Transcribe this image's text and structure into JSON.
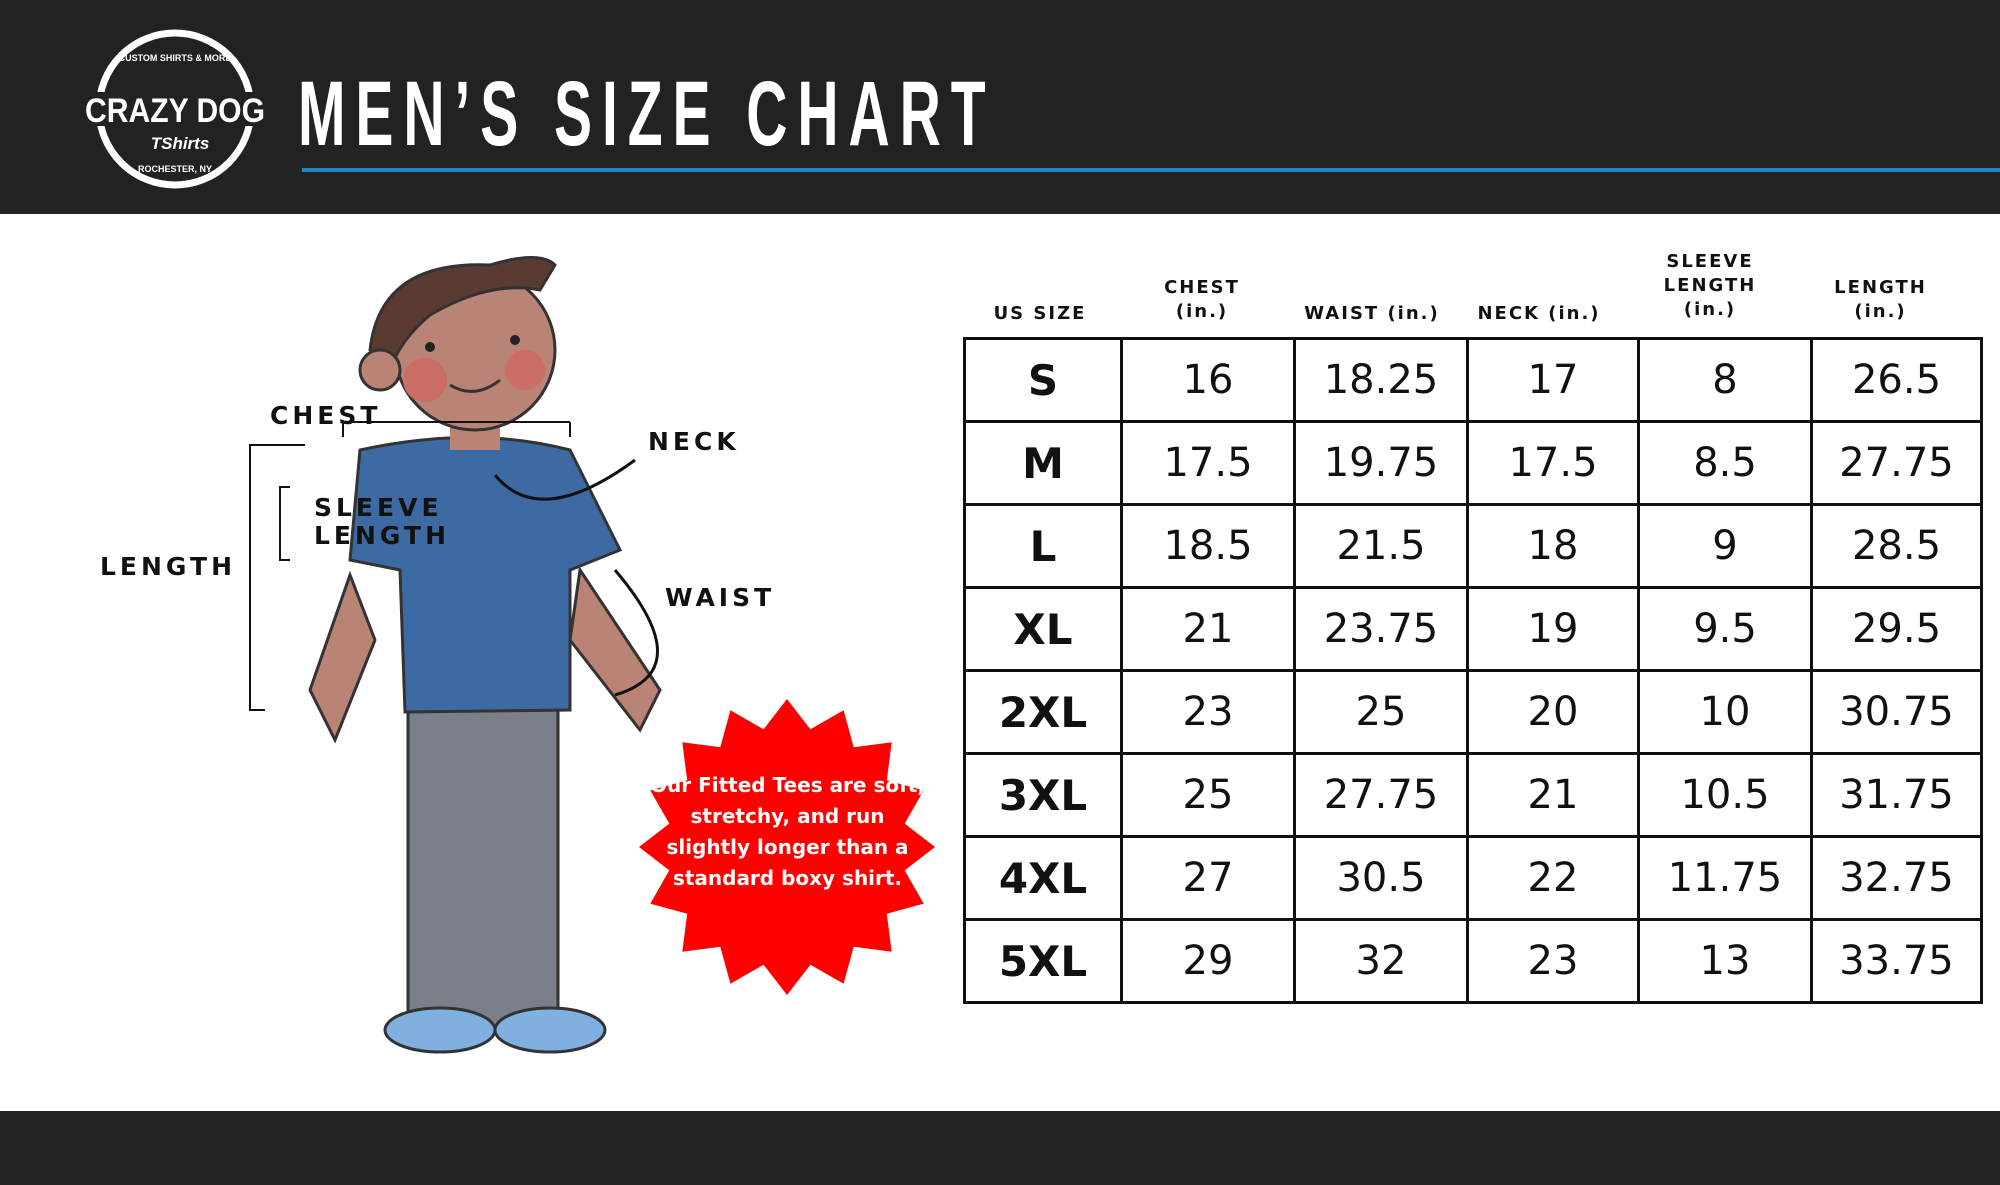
{
  "header": {
    "title": "MEN’S SIZE CHART",
    "logo": {
      "brand": "CRAZY DOG",
      "sub": "TShirts",
      "top_text": "CUSTOM SHIRTS & MORE",
      "bottom_text": "ROCHESTER, NY"
    }
  },
  "colors": {
    "header_bg": "#222222",
    "accent": "#1a86c8",
    "badge": "#ff0000"
  },
  "figure": {
    "labels": {
      "chest": "CHEST",
      "neck": "NECK",
      "sleeve": "SLEEVE",
      "sleeve2": "LENGTH",
      "length": "LENGTH",
      "waist": "WAIST"
    }
  },
  "badge": {
    "text": "Our Fitted Tees are soft, stretchy, and run slightly longer than a standard boxy shirt."
  },
  "table": {
    "headers": [
      [
        "",
        "US SIZE"
      ],
      [
        "CHEST",
        "(in.)"
      ],
      [
        "",
        "WAIST (in.)"
      ],
      [
        "",
        "NECK (in.)"
      ],
      [
        "SLEEVE LENGTH",
        "(in.)"
      ],
      [
        "LENGTH",
        "(in.)"
      ]
    ],
    "rows": [
      [
        "S",
        "16",
        "18.25",
        "17",
        "8",
        "26.5"
      ],
      [
        "M",
        "17.5",
        "19.75",
        "17.5",
        "8.5",
        "27.75"
      ],
      [
        "L",
        "18.5",
        "21.5",
        "18",
        "9",
        "28.5"
      ],
      [
        "XL",
        "21",
        "23.75",
        "19",
        "9.5",
        "29.5"
      ],
      [
        "2XL",
        "23",
        "25",
        "20",
        "10",
        "30.75"
      ],
      [
        "3XL",
        "25",
        "27.75",
        "21",
        "10.5",
        "31.75"
      ],
      [
        "4XL",
        "27",
        "30.5",
        "22",
        "11.75",
        "32.75"
      ],
      [
        "5XL",
        "29",
        "32",
        "23",
        "13",
        "33.75"
      ]
    ]
  }
}
